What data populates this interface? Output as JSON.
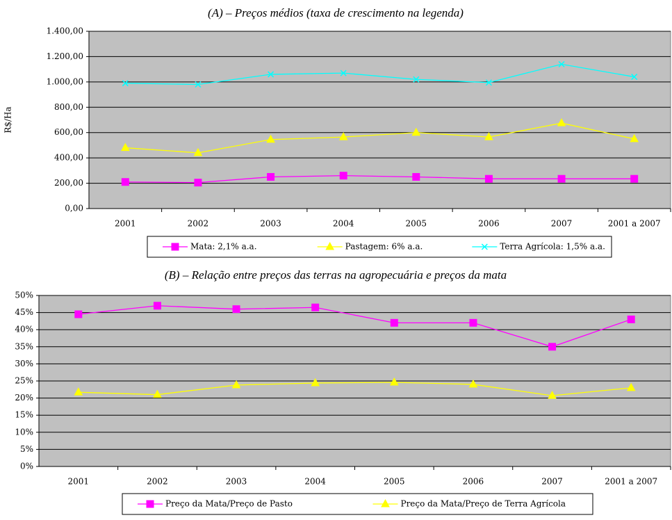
{
  "chart_data": [
    {
      "type": "line",
      "title": "(A) – Preços médios (taxa de crescimento na legenda)",
      "y_label": "R$/Ha",
      "categories": [
        "2001",
        "2002",
        "2003",
        "2004",
        "2005",
        "2006",
        "2007",
        "2001 a 2007"
      ],
      "series": [
        {
          "name": "Mata: 2,1% a.a.",
          "color": "#ff00ff",
          "marker": "square",
          "values": [
            210,
            205,
            250,
            260,
            250,
            235,
            235,
            235
          ]
        },
        {
          "name": "Pastagem: 6% a.a.",
          "color": "#ffff00",
          "marker": "triangle",
          "values": [
            480,
            440,
            545,
            565,
            600,
            565,
            675,
            550
          ]
        },
        {
          "name": "Terra Agrícola: 1,5% a.a.",
          "color": "#00ffff",
          "marker": "x",
          "values": [
            990,
            980,
            1060,
            1070,
            1020,
            995,
            1140,
            1040
          ]
        }
      ],
      "ylim": [
        0,
        1400
      ],
      "yticks": [
        {
          "value": 0,
          "label": "0,00"
        },
        {
          "value": 200,
          "label": "200,00"
        },
        {
          "value": 400,
          "label": "400,00"
        },
        {
          "value": 600,
          "label": "600,00"
        },
        {
          "value": 800,
          "label": "800,00"
        },
        {
          "value": 1000,
          "label": "1.000,00"
        },
        {
          "value": 1200,
          "label": "1.200,00"
        },
        {
          "value": 1400,
          "label": "1.400,00"
        }
      ],
      "grid": true,
      "legend": "bottom"
    },
    {
      "type": "line",
      "title": "(B) – Relação entre preços das terras na agropecuária e preços da mata",
      "categories": [
        "2001",
        "2002",
        "2003",
        "2004",
        "2005",
        "2006",
        "2007",
        "2001 a 2007"
      ],
      "series": [
        {
          "name": "Preço da Mata/Preço de Pasto",
          "color": "#ff00ff",
          "marker": "square",
          "values": [
            44.5,
            47,
            46,
            46.5,
            42,
            42,
            35,
            43
          ]
        },
        {
          "name": "Preço da Mata/Preço de Terra Agrícola",
          "color": "#ffff00",
          "marker": "triangle",
          "values": [
            21.7,
            21,
            23.8,
            24.4,
            24.6,
            24,
            20.7,
            23
          ]
        }
      ],
      "ylim": [
        0,
        50
      ],
      "yticks": [
        {
          "value": 0,
          "label": "0%"
        },
        {
          "value": 5,
          "label": "5%"
        },
        {
          "value": 10,
          "label": "10%"
        },
        {
          "value": 15,
          "label": "15%"
        },
        {
          "value": 20,
          "label": "20%"
        },
        {
          "value": 25,
          "label": "25%"
        },
        {
          "value": 30,
          "label": "30%"
        },
        {
          "value": 35,
          "label": "35%"
        },
        {
          "value": 40,
          "label": "40%"
        },
        {
          "value": 45,
          "label": "45%"
        },
        {
          "value": 50,
          "label": "50%"
        }
      ],
      "grid": true,
      "legend": "bottom"
    }
  ]
}
